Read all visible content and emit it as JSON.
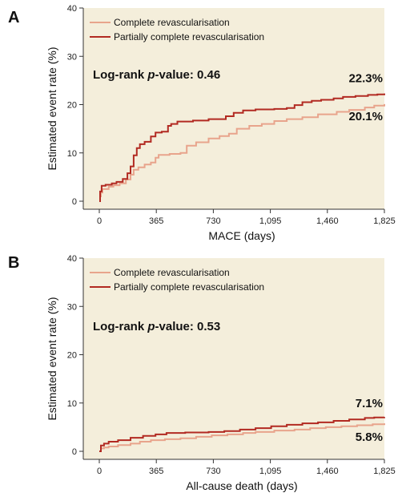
{
  "chart_data": [
    {
      "panel": "A",
      "type": "line",
      "xlabel": "MACE (days)",
      "ylabel": "Estimated event rate (%)",
      "xlim": [
        0,
        1825
      ],
      "ylim": [
        0,
        40
      ],
      "xticks": [
        "0",
        "365",
        "730",
        "1,095",
        "1,460",
        "1,825"
      ],
      "yticks": [
        "0",
        "10",
        "20",
        "30",
        "40"
      ],
      "stat_text": {
        "before": "Log-rank ",
        "italic": "p",
        "after": "-value: 0.46"
      },
      "legend_position": "top-left",
      "series": [
        {
          "name": "Complete revascularisation",
          "color": "#e8a48c",
          "end_label": "20.1%",
          "points": [
            [
              0,
              0
            ],
            [
              5,
              1
            ],
            [
              10,
              1.8
            ],
            [
              20,
              2.5
            ],
            [
              60,
              3
            ],
            [
              90,
              3.3
            ],
            [
              130,
              3.7
            ],
            [
              170,
              4.5
            ],
            [
              200,
              5.5
            ],
            [
              220,
              6.5
            ],
            [
              250,
              7
            ],
            [
              290,
              7.6
            ],
            [
              330,
              8
            ],
            [
              360,
              9
            ],
            [
              380,
              9.6
            ],
            [
              450,
              9.8
            ],
            [
              520,
              10
            ],
            [
              560,
              11.5
            ],
            [
              620,
              12.2
            ],
            [
              700,
              13
            ],
            [
              770,
              13.5
            ],
            [
              830,
              14
            ],
            [
              880,
              15
            ],
            [
              960,
              15.6
            ],
            [
              1040,
              16
            ],
            [
              1120,
              16.6
            ],
            [
              1200,
              17
            ],
            [
              1300,
              17.4
            ],
            [
              1400,
              18
            ],
            [
              1470,
              18
            ],
            [
              1520,
              18.5
            ],
            [
              1600,
              18.9
            ],
            [
              1700,
              19.4
            ],
            [
              1760,
              19.8
            ],
            [
              1825,
              20.1
            ]
          ]
        },
        {
          "name": "Partially complete revascularisation",
          "color": "#b22a22",
          "end_label": "22.3%",
          "points": [
            [
              0,
              0
            ],
            [
              5,
              2
            ],
            [
              15,
              3.2
            ],
            [
              40,
              3.4
            ],
            [
              80,
              3.7
            ],
            [
              110,
              4
            ],
            [
              150,
              4.6
            ],
            [
              180,
              5.8
            ],
            [
              200,
              7.2
            ],
            [
              220,
              9.5
            ],
            [
              240,
              11
            ],
            [
              260,
              11.8
            ],
            [
              290,
              12.3
            ],
            [
              330,
              13.4
            ],
            [
              360,
              14.2
            ],
            [
              400,
              14.4
            ],
            [
              440,
              15.6
            ],
            [
              460,
              16
            ],
            [
              500,
              16.5
            ],
            [
              600,
              16.7
            ],
            [
              700,
              17
            ],
            [
              810,
              17.6
            ],
            [
              860,
              18.3
            ],
            [
              920,
              18.8
            ],
            [
              1000,
              19
            ],
            [
              1120,
              19.1
            ],
            [
              1200,
              19.3
            ],
            [
              1250,
              19.9
            ],
            [
              1300,
              20.5
            ],
            [
              1360,
              20.8
            ],
            [
              1420,
              21
            ],
            [
              1500,
              21.3
            ],
            [
              1560,
              21.6
            ],
            [
              1640,
              21.8
            ],
            [
              1720,
              22
            ],
            [
              1780,
              22.1
            ],
            [
              1825,
              22.3
            ]
          ]
        }
      ]
    },
    {
      "panel": "B",
      "type": "line",
      "xlabel": "All-cause death (days)",
      "ylabel": "Estimated event rate (%)",
      "xlim": [
        0,
        1825
      ],
      "ylim": [
        0,
        40
      ],
      "xticks": [
        "0",
        "365",
        "730",
        "1,095",
        "1,460",
        "1,825"
      ],
      "yticks": [
        "0",
        "10",
        "20",
        "30",
        "40"
      ],
      "stat_text": {
        "before": "Log-rank ",
        "italic": "p",
        "after": "-value: 0.53"
      },
      "legend_position": "top-left",
      "series": [
        {
          "name": "Complete revascularisation",
          "color": "#e8a48c",
          "end_label": "5.8%",
          "points": [
            [
              0,
              0
            ],
            [
              10,
              0.6
            ],
            [
              30,
              0.8
            ],
            [
              60,
              1
            ],
            [
              120,
              1.3
            ],
            [
              200,
              1.6
            ],
            [
              260,
              2
            ],
            [
              330,
              2.3
            ],
            [
              420,
              2.5
            ],
            [
              520,
              2.7
            ],
            [
              620,
              3
            ],
            [
              720,
              3.3
            ],
            [
              820,
              3.5
            ],
            [
              920,
              3.8
            ],
            [
              1000,
              4
            ],
            [
              1120,
              4.3
            ],
            [
              1250,
              4.5
            ],
            [
              1350,
              4.8
            ],
            [
              1450,
              5
            ],
            [
              1550,
              5.2
            ],
            [
              1650,
              5.4
            ],
            [
              1750,
              5.6
            ],
            [
              1825,
              5.8
            ]
          ]
        },
        {
          "name": "Partially complete revascularisation",
          "color": "#b22a22",
          "end_label": "7.1%",
          "points": [
            [
              0,
              0
            ],
            [
              10,
              1.2
            ],
            [
              30,
              1.6
            ],
            [
              60,
              2
            ],
            [
              120,
              2.3
            ],
            [
              200,
              2.8
            ],
            [
              280,
              3.2
            ],
            [
              360,
              3.5
            ],
            [
              430,
              3.8
            ],
            [
              550,
              3.9
            ],
            [
              700,
              4
            ],
            [
              800,
              4.2
            ],
            [
              900,
              4.5
            ],
            [
              1000,
              4.8
            ],
            [
              1100,
              5.2
            ],
            [
              1200,
              5.5
            ],
            [
              1300,
              5.8
            ],
            [
              1400,
              6
            ],
            [
              1500,
              6.3
            ],
            [
              1600,
              6.6
            ],
            [
              1700,
              6.9
            ],
            [
              1760,
              7
            ],
            [
              1825,
              7.1
            ]
          ]
        }
      ]
    }
  ]
}
